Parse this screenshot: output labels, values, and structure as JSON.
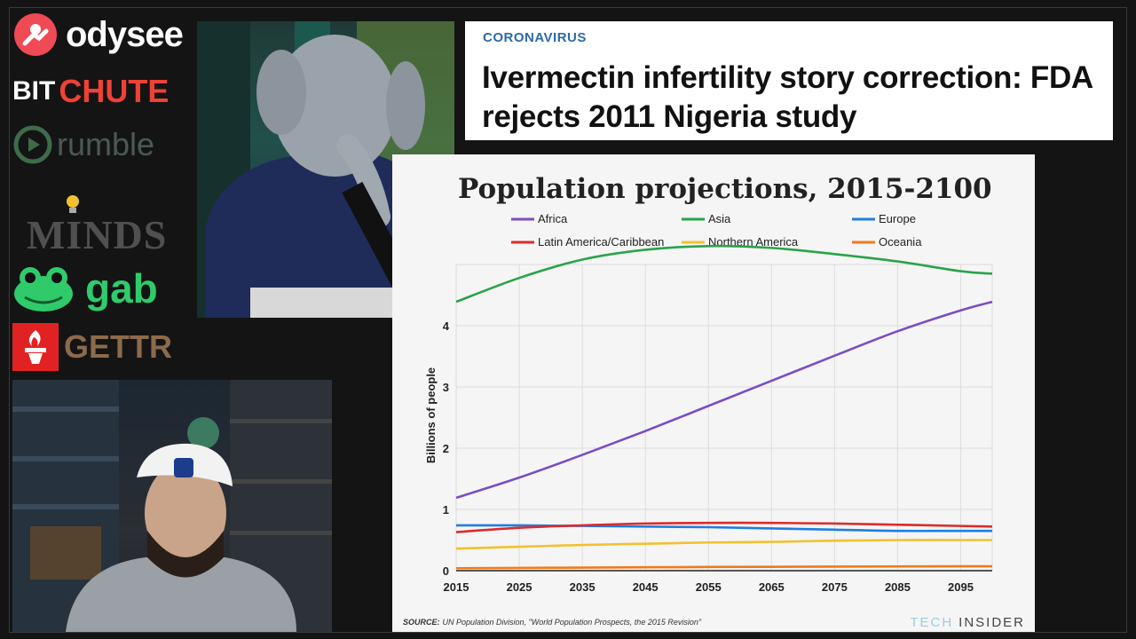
{
  "sidebar": {
    "logos": [
      {
        "name": "odysee",
        "text": "odysee",
        "color": "#ef4a55"
      },
      {
        "name": "bitchute",
        "text_a": "BIT",
        "text_b": "CHUTE",
        "color": "#ef4136"
      },
      {
        "name": "rumble",
        "text": "rumble",
        "color": "#4a5a52"
      },
      {
        "name": "minds",
        "text": "MINDS",
        "color": "#505050"
      },
      {
        "name": "gab",
        "text": "gab",
        "color": "#2fcb6b"
      },
      {
        "name": "gettr",
        "text": "GETTR",
        "color": "#e22222"
      }
    ]
  },
  "headline": {
    "kicker": "CORONAVIRUS",
    "title": "Ivermectin infertility story correction: FDA rejects 2011 Nigeria study"
  },
  "chart_data": {
    "type": "line",
    "title": "Population projections, 2015-2100",
    "ylabel": "Billions of people",
    "xlabel": "",
    "xlim": [
      2015,
      2100
    ],
    "ylim": [
      0,
      5
    ],
    "x_ticks": [
      2015,
      2025,
      2035,
      2045,
      2055,
      2065,
      2075,
      2085,
      2095
    ],
    "y_ticks": [
      0,
      1,
      2,
      3,
      4
    ],
    "grid": true,
    "legend_position": "top",
    "x": [
      2015,
      2025,
      2035,
      2045,
      2055,
      2065,
      2075,
      2085,
      2095,
      2100
    ],
    "series": [
      {
        "name": "Africa",
        "color": "#7a4fc1",
        "values": [
          1.19,
          1.52,
          1.89,
          2.28,
          2.69,
          3.1,
          3.51,
          3.91,
          4.25,
          4.39
        ]
      },
      {
        "name": "Asia",
        "color": "#29a34a",
        "values": [
          4.39,
          4.78,
          5.08,
          5.24,
          5.3,
          5.27,
          5.17,
          5.05,
          4.89,
          4.85
        ]
      },
      {
        "name": "Europe",
        "color": "#1d7ee0",
        "values": [
          0.74,
          0.74,
          0.73,
          0.72,
          0.71,
          0.69,
          0.67,
          0.65,
          0.65,
          0.65
        ]
      },
      {
        "name": "Latin America/Caribbean",
        "color": "#dd2a2a",
        "values": [
          0.63,
          0.7,
          0.74,
          0.77,
          0.78,
          0.78,
          0.77,
          0.75,
          0.73,
          0.72
        ]
      },
      {
        "name": "Northern America",
        "color": "#f2c12e",
        "values": [
          0.36,
          0.39,
          0.42,
          0.44,
          0.46,
          0.47,
          0.49,
          0.5,
          0.5,
          0.5
        ]
      },
      {
        "name": "Oceania",
        "color": "#f07a1a",
        "values": [
          0.04,
          0.045,
          0.05,
          0.055,
          0.06,
          0.063,
          0.066,
          0.069,
          0.071,
          0.072
        ]
      }
    ],
    "source_label": "SOURCE:",
    "source": "UN Population Division, \"World Population Prospects, the 2015 Revision\"",
    "brand_a": "TECH",
    "brand_b": "INSIDER"
  }
}
